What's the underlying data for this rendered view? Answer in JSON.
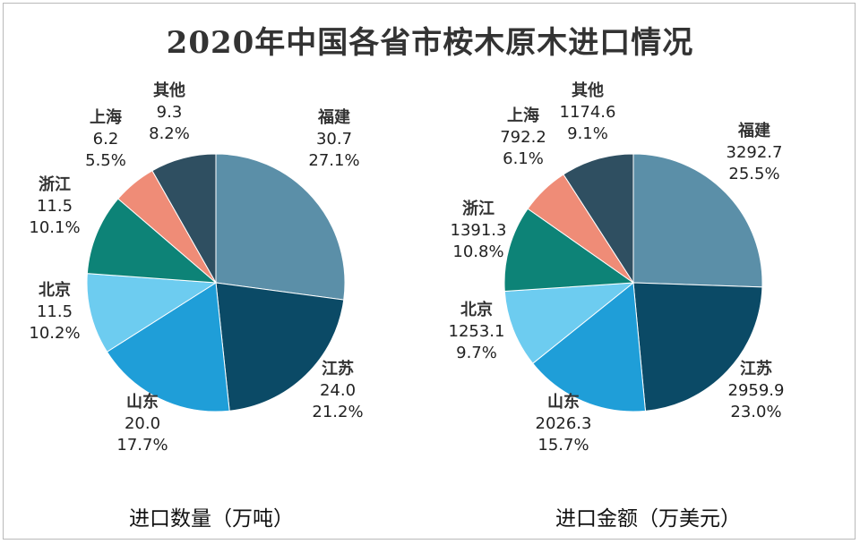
{
  "title": "2020年中国各省市桉木原木进口情况",
  "chart_data": [
    {
      "type": "pie",
      "caption": "进口数量（万吨）",
      "slices": [
        {
          "name": "福建",
          "value": "30.7",
          "percent": "27.1%",
          "color": "#5b8fa8"
        },
        {
          "name": "江苏",
          "value": "24.0",
          "percent": "21.2%",
          "color": "#0b4a66"
        },
        {
          "name": "山东",
          "value": "20.0",
          "percent": "17.7%",
          "color": "#1f9ed8"
        },
        {
          "name": "北京",
          "value": "11.5",
          "percent": "10.2%",
          "color": "#6dccf0"
        },
        {
          "name": "浙江",
          "value": "11.5",
          "percent": "10.1%",
          "color": "#0d8377"
        },
        {
          "name": "上海",
          "value": "6.2",
          "percent": "5.5%",
          "color": "#ef8c77"
        },
        {
          "name": "其他",
          "value": "9.3",
          "percent": "8.2%",
          "color": "#2f4f61"
        }
      ]
    },
    {
      "type": "pie",
      "caption": "进口金额（万美元）",
      "slices": [
        {
          "name": "福建",
          "value": "3292.7",
          "percent": "25.5%",
          "color": "#5b8fa8"
        },
        {
          "name": "江苏",
          "value": "2959.9",
          "percent": "23.0%",
          "color": "#0b4a66"
        },
        {
          "name": "山东",
          "value": "2026.3",
          "percent": "15.7%",
          "color": "#1f9ed8"
        },
        {
          "name": "北京",
          "value": "1253.1",
          "percent": "9.7%",
          "color": "#6dccf0"
        },
        {
          "name": "浙江",
          "value": "1391.3",
          "percent": "10.8%",
          "color": "#0d8377"
        },
        {
          "name": "上海",
          "value": "792.2",
          "percent": "6.1%",
          "color": "#ef8c77"
        },
        {
          "name": "其他",
          "value": "1174.6",
          "percent": "9.1%",
          "color": "#2f4f61"
        }
      ]
    }
  ]
}
